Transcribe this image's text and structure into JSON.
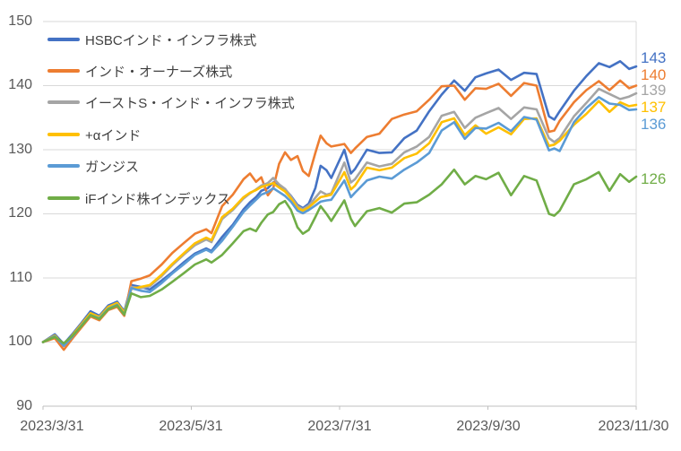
{
  "chart_data": {
    "type": "line",
    "title": "",
    "grid": true,
    "legend_position": "top-left-inside",
    "colors": {
      "grid": "#d9d9d9",
      "axis": "#bfbfbf",
      "tick_text": "#595959",
      "legend_text": "#404040",
      "background": "#ffffff"
    },
    "y_axis": {
      "range": [
        90,
        150
      ],
      "tick_labels": [
        "150",
        "140",
        "130",
        "120",
        "110",
        "100",
        "90"
      ],
      "tick_values": [
        150,
        140,
        130,
        120,
        110,
        100,
        90
      ]
    },
    "x_axis": {
      "tick_labels": [
        "2023/3/31",
        "2023/5/31",
        "2023/7/31",
        "2023/9/30",
        "2023/11/30"
      ],
      "tick_positions": [
        0,
        0.25,
        0.5,
        0.75,
        1
      ]
    },
    "x": [
      0.0,
      0.02,
      0.035,
      0.05,
      0.065,
      0.08,
      0.095,
      0.11,
      0.125,
      0.137,
      0.149,
      0.165,
      0.18,
      0.2,
      0.218,
      0.238,
      0.256,
      0.275,
      0.284,
      0.302,
      0.32,
      0.338,
      0.349,
      0.359,
      0.368,
      0.379,
      0.388,
      0.398,
      0.408,
      0.418,
      0.429,
      0.438,
      0.448,
      0.459,
      0.468,
      0.478,
      0.486,
      0.508,
      0.519,
      0.526,
      0.546,
      0.567,
      0.588,
      0.609,
      0.63,
      0.651,
      0.672,
      0.693,
      0.711,
      0.729,
      0.747,
      0.768,
      0.789,
      0.811,
      0.832,
      0.853,
      0.862,
      0.871,
      0.895,
      0.916,
      0.937,
      0.955,
      0.973,
      0.988,
      1.0
    ],
    "series": [
      {
        "name": "HSBCインド・インフラ株式",
        "color": "#4472C4",
        "end_label": "143",
        "values": [
          100.0,
          101.2,
          99.7,
          101.3,
          103.0,
          104.8,
          104.1,
          105.7,
          106.3,
          104.8,
          108.9,
          108.6,
          108.2,
          109.6,
          110.9,
          112.5,
          113.8,
          114.6,
          114.2,
          116.4,
          118.3,
          120.7,
          121.8,
          122.6,
          123.6,
          124.0,
          124.9,
          124.3,
          123.8,
          122.8,
          121.4,
          120.9,
          121.6,
          124.0,
          127.5,
          126.8,
          125.6,
          130.0,
          126.3,
          127.0,
          130.0,
          129.5,
          129.6,
          131.8,
          133.0,
          136.0,
          138.6,
          140.8,
          139.2,
          141.3,
          141.9,
          142.5,
          140.9,
          142.0,
          141.8,
          135.2,
          134.7,
          136.0,
          139.2,
          141.5,
          143.5,
          142.9,
          143.8,
          142.6,
          143.0
        ]
      },
      {
        "name": "インド・オーナーズ株式",
        "color": "#ED7D31",
        "end_label": "140",
        "values": [
          100.0,
          100.6,
          98.8,
          100.6,
          102.3,
          104.0,
          103.4,
          105.0,
          105.5,
          104.1,
          109.5,
          109.9,
          110.4,
          112.1,
          113.9,
          115.5,
          116.9,
          117.6,
          117.0,
          121.2,
          123.0,
          125.4,
          126.3,
          125.0,
          125.7,
          122.9,
          124.0,
          127.8,
          129.6,
          128.4,
          129.0,
          126.7,
          125.9,
          129.5,
          132.2,
          131.0,
          130.5,
          130.9,
          129.5,
          130.2,
          132.0,
          132.5,
          134.8,
          135.5,
          136.0,
          137.8,
          139.9,
          140.0,
          137.8,
          139.6,
          139.5,
          140.3,
          138.4,
          140.4,
          140.0,
          132.8,
          133.0,
          134.5,
          137.4,
          139.3,
          140.7,
          139.3,
          140.8,
          139.6,
          140.0
        ]
      },
      {
        "name": "イーストS・インド・インフラ株式",
        "color": "#A5A5A5",
        "end_label": "139",
        "values": [
          100.0,
          101.0,
          99.5,
          101.0,
          102.7,
          104.4,
          103.8,
          105.4,
          106.0,
          104.5,
          108.6,
          108.4,
          108.7,
          110.3,
          112.0,
          113.7,
          115.1,
          116.0,
          115.6,
          119.2,
          120.6,
          122.4,
          123.2,
          123.8,
          124.4,
          124.8,
          125.6,
          124.6,
          123.9,
          122.7,
          121.2,
          120.7,
          121.3,
          122.5,
          123.5,
          123.0,
          123.2,
          128.0,
          124.9,
          125.4,
          128.0,
          127.4,
          127.8,
          129.6,
          130.5,
          132.0,
          135.3,
          135.9,
          133.4,
          135.0,
          135.7,
          136.5,
          134.8,
          136.6,
          136.3,
          131.8,
          131.2,
          131.8,
          135.2,
          137.3,
          139.5,
          138.7,
          137.9,
          138.3,
          138.8
        ]
      },
      {
        "name": "+αインド",
        "color": "#FFC000",
        "end_label": "137",
        "values": [
          100.0,
          101.0,
          99.5,
          101.1,
          102.8,
          104.5,
          103.9,
          105.5,
          106.1,
          104.6,
          108.3,
          108.6,
          108.9,
          110.5,
          112.2,
          113.9,
          115.4,
          116.3,
          115.9,
          119.5,
          120.8,
          122.6,
          123.3,
          123.7,
          124.2,
          124.5,
          124.8,
          124.1,
          123.5,
          122.4,
          120.9,
          120.5,
          121.0,
          121.9,
          122.6,
          122.8,
          123.0,
          126.5,
          123.8,
          124.4,
          127.2,
          126.8,
          127.2,
          128.7,
          129.4,
          131.0,
          134.3,
          134.9,
          132.3,
          133.8,
          132.5,
          133.5,
          132.4,
          134.8,
          134.9,
          130.6,
          130.8,
          131.4,
          133.9,
          135.6,
          137.6,
          135.9,
          137.4,
          136.8,
          137.0
        ]
      },
      {
        "name": "ガンジス",
        "color": "#5B9BD5",
        "end_label": "136",
        "values": [
          100.0,
          100.9,
          99.4,
          100.9,
          102.6,
          104.2,
          103.7,
          105.2,
          105.8,
          104.3,
          108.4,
          108.0,
          107.8,
          109.2,
          110.7,
          112.2,
          113.6,
          114.4,
          114.0,
          115.8,
          118.0,
          120.3,
          121.3,
          122.2,
          123.0,
          123.4,
          124.0,
          123.4,
          122.8,
          121.9,
          120.5,
          120.1,
          120.6,
          121.3,
          121.9,
          122.1,
          122.2,
          125.2,
          122.6,
          123.3,
          125.2,
          125.8,
          125.5,
          126.9,
          128.0,
          129.5,
          133.0,
          134.3,
          131.7,
          133.4,
          133.3,
          134.2,
          132.9,
          135.1,
          134.7,
          129.9,
          130.2,
          129.8,
          134.3,
          136.5,
          138.2,
          137.2,
          137.0,
          136.2,
          136.3
        ]
      },
      {
        "name": "iFインド株インデックス",
        "color": "#70AD47",
        "end_label": "126",
        "values": [
          100.0,
          100.8,
          99.8,
          101.0,
          102.5,
          104.2,
          103.6,
          105.1,
          105.7,
          104.3,
          107.6,
          107.0,
          107.2,
          108.2,
          109.4,
          110.8,
          112.1,
          112.9,
          112.4,
          113.6,
          115.4,
          117.3,
          117.7,
          117.3,
          118.6,
          119.9,
          120.3,
          121.5,
          122.0,
          120.6,
          117.9,
          116.9,
          117.5,
          119.5,
          121.2,
          120.0,
          118.9,
          122.1,
          119.2,
          118.1,
          120.4,
          120.9,
          120.2,
          121.6,
          121.8,
          123.0,
          124.6,
          126.9,
          124.6,
          125.9,
          125.4,
          126.4,
          122.9,
          125.9,
          125.2,
          120.0,
          119.7,
          120.5,
          124.6,
          125.4,
          126.5,
          123.6,
          126.2,
          125.0,
          125.8
        ]
      }
    ]
  }
}
